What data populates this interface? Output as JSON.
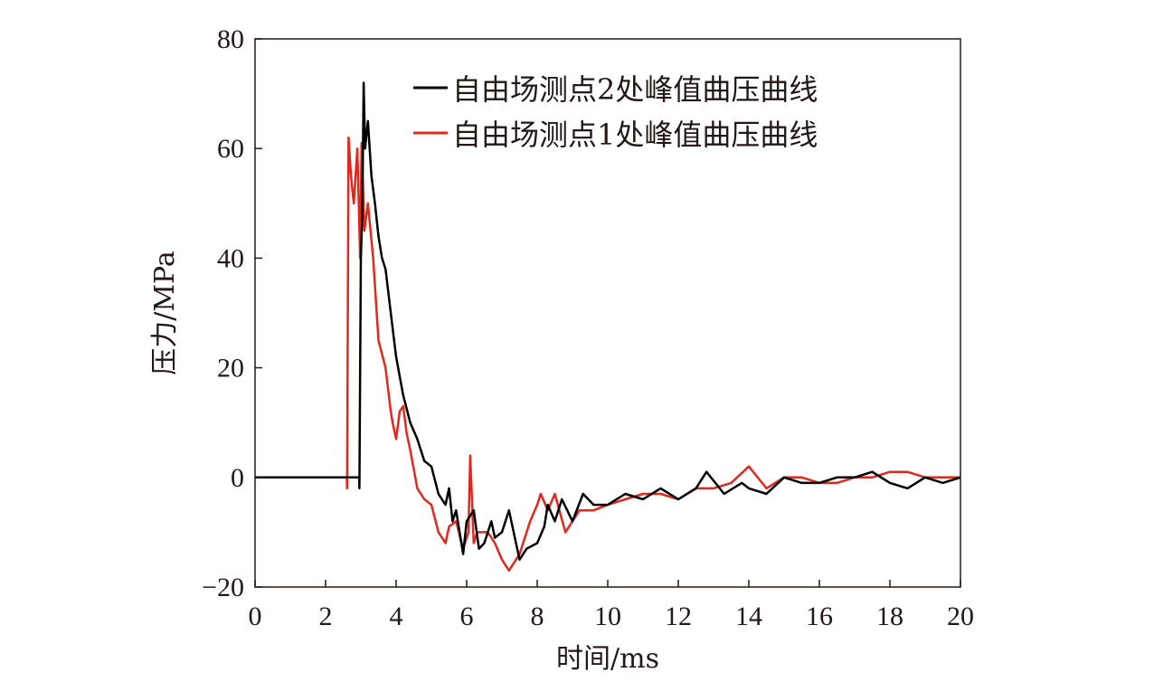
{
  "chart_data": {
    "type": "line",
    "title": "",
    "xlabel": "时间/ms",
    "ylabel": "压力/MPa",
    "xlim": [
      0,
      20
    ],
    "ylim": [
      -20,
      80
    ],
    "xticks": [
      0,
      2,
      4,
      6,
      8,
      10,
      12,
      14,
      16,
      18,
      20
    ],
    "yticks": [
      -20,
      0,
      20,
      40,
      60,
      80
    ],
    "xtick_labels": [
      "0",
      "2",
      "4",
      "6",
      "8",
      "10",
      "12",
      "14",
      "16",
      "18",
      "20"
    ],
    "ytick_labels": [
      "−20",
      "0",
      "20",
      "40",
      "60",
      "80"
    ],
    "grid": false,
    "legend_position": "top-right",
    "series": [
      {
        "name": "自由场测点2处峰值曲压曲线",
        "color": "#000000",
        "x": [
          0,
          2.95,
          2.96,
          3.0,
          3.04,
          3.08,
          3.12,
          3.2,
          3.3,
          3.4,
          3.5,
          3.6,
          3.7,
          3.85,
          4.0,
          4.2,
          4.4,
          4.6,
          4.8,
          5.0,
          5.2,
          5.4,
          5.5,
          5.6,
          5.7,
          5.9,
          6.0,
          6.2,
          6.35,
          6.5,
          6.7,
          6.8,
          7.0,
          7.2,
          7.5,
          7.7,
          8.0,
          8.2,
          8.3,
          8.5,
          8.7,
          9.0,
          9.3,
          9.6,
          10.0,
          10.5,
          11.0,
          11.5,
          12.0,
          12.5,
          12.8,
          13.3,
          13.8,
          14.0,
          14.5,
          15.0,
          15.5,
          16.0,
          16.5,
          17.0,
          17.5,
          18.0,
          18.5,
          19.0,
          19.5,
          20.0
        ],
        "y": [
          0,
          0,
          -2,
          40,
          48,
          72,
          60,
          65,
          55,
          50,
          44,
          40,
          38,
          30,
          22,
          15,
          10,
          7,
          3,
          2,
          -3,
          -5,
          -2,
          -8,
          -6,
          -14,
          -8,
          -6,
          -13,
          -12,
          -8,
          -11,
          -10,
          -6,
          -15,
          -13,
          -12,
          -9,
          -5,
          -8,
          -4,
          -8,
          -3,
          -5,
          -5,
          -3,
          -4,
          -2,
          -4,
          -2,
          1,
          -3,
          -1,
          -2,
          -3,
          0,
          -1,
          -1,
          0,
          0,
          1,
          -1,
          -2,
          0,
          -1,
          0
        ]
      },
      {
        "name": "自由场测点1处峰值曲压曲线",
        "color": "#e0281e",
        "x": [
          0,
          2.6,
          2.61,
          2.65,
          2.72,
          2.8,
          2.9,
          2.98,
          3.02,
          3.1,
          3.2,
          3.35,
          3.5,
          3.7,
          3.85,
          3.9,
          4.0,
          4.1,
          4.2,
          4.3,
          4.4,
          4.6,
          4.8,
          5.0,
          5.2,
          5.4,
          5.5,
          5.7,
          5.9,
          6.05,
          6.1,
          6.2,
          6.3,
          6.6,
          6.8,
          7.0,
          7.2,
          7.5,
          7.8,
          8.0,
          8.1,
          8.3,
          8.5,
          8.8,
          9.2,
          9.6,
          10.0,
          10.5,
          11.0,
          11.5,
          12.0,
          12.5,
          13.0,
          13.5,
          14.0,
          14.5,
          15.0,
          15.5,
          16.0,
          16.5,
          17.0,
          17.5,
          18.0,
          18.5,
          19.0,
          19.5,
          20.0
        ],
        "y": [
          0,
          0,
          -2,
          62,
          55,
          50,
          60,
          40,
          61,
          45,
          50,
          40,
          25,
          20,
          12,
          10,
          7,
          12,
          13,
          8,
          5,
          -2,
          -4,
          -5,
          -10,
          -12,
          -9,
          -8,
          -13,
          -10,
          4,
          -12,
          -10,
          -10,
          -12,
          -15,
          -17,
          -14,
          -8,
          -5,
          -3,
          -6,
          -3,
          -10,
          -6,
          -6,
          -5,
          -4,
          -3,
          -3,
          -4,
          -2,
          -2,
          -1,
          2,
          -2,
          0,
          0,
          -1,
          -1,
          0,
          0,
          1,
          1,
          0,
          0,
          0
        ]
      }
    ]
  }
}
